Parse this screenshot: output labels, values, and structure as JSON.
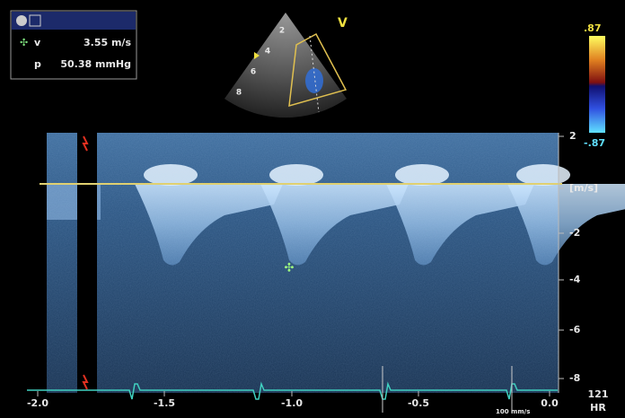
{
  "info_box": {
    "velocity_label": "v",
    "velocity": "3.55 m/s",
    "pressure_label": "p",
    "pressure": "50.38 mmHg"
  },
  "sector": {
    "mode_label": "V",
    "depth_ticks": [
      "2",
      "4",
      "6",
      "8"
    ]
  },
  "color_scale": {
    "max": ".87",
    "min": "-.87"
  },
  "velocity_axis": {
    "ticks": [
      "2",
      "[m/s]",
      "-2",
      "-4",
      "-6",
      "-8"
    ]
  },
  "time_axis": {
    "ticks": [
      "-2.0",
      "-1.5",
      "-1.0",
      "-0.5",
      "0.0"
    ],
    "sweep_speed": "100 mm/s"
  },
  "heart_rate": {
    "value": "121",
    "label": "HR"
  }
}
